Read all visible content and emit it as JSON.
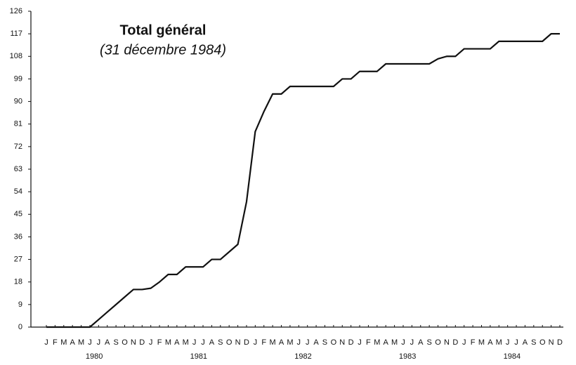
{
  "chart_data": {
    "type": "line",
    "title": "Total général",
    "subtitle": "(31 décembre 1984)",
    "categories": [
      "J",
      "F",
      "M",
      "A",
      "M",
      "J",
      "J",
      "A",
      "S",
      "O",
      "N",
      "D",
      "J",
      "F",
      "M",
      "A",
      "M",
      "J",
      "J",
      "A",
      "S",
      "O",
      "N",
      "D",
      "J",
      "F",
      "M",
      "A",
      "M",
      "J",
      "J",
      "A",
      "S",
      "O",
      "N",
      "D",
      "J",
      "F",
      "M",
      "A",
      "M",
      "J",
      "J",
      "A",
      "S",
      "O",
      "N",
      "D",
      "J",
      "F",
      "M",
      "A",
      "M",
      "J",
      "J",
      "A",
      "S",
      "O",
      "N",
      "D"
    ],
    "years": [
      "1980",
      "1981",
      "1982",
      "1983",
      "1984"
    ],
    "values": [
      0,
      0,
      0,
      0,
      0,
      0,
      3,
      6,
      9,
      12,
      15,
      15,
      15.5,
      18,
      21,
      21,
      24,
      24,
      24,
      27,
      27,
      30,
      33,
      50,
      78,
      86,
      93,
      93,
      96,
      96,
      96,
      96,
      96,
      96,
      99,
      99,
      102,
      102,
      102,
      105,
      105,
      105,
      105,
      105,
      105,
      107,
      108,
      108,
      111,
      111,
      111,
      111,
      114,
      114,
      114,
      114,
      114,
      114,
      117,
      117
    ],
    "color": "#111111",
    "ylim": [
      0,
      126
    ],
    "yticks": [
      0,
      9,
      18,
      27,
      36,
      45,
      54,
      63,
      72,
      81,
      90,
      99,
      108,
      117,
      126
    ]
  }
}
